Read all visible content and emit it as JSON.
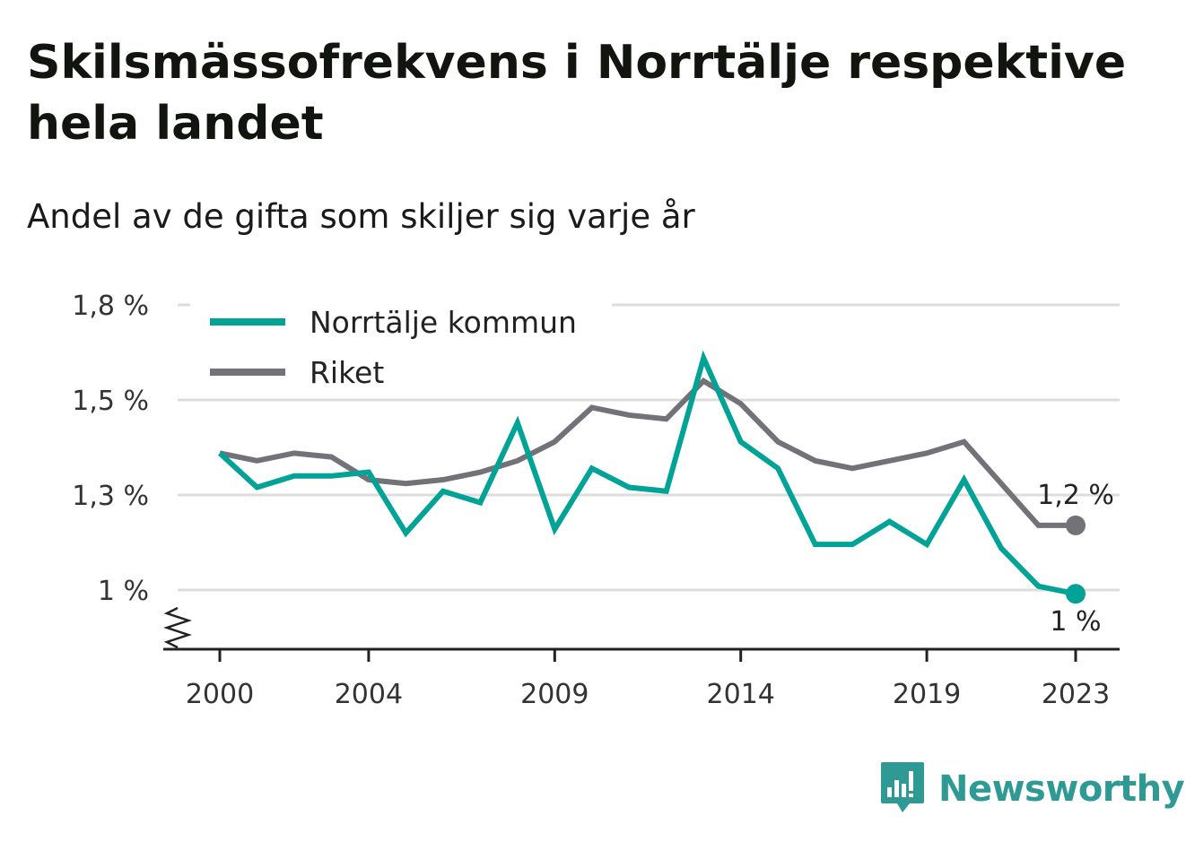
{
  "title": "Skilsmässofrekvens i Norrtälje respektive hela landet",
  "subtitle": "Andel av de gifta som skiljer sig varje år",
  "brand": "Newsworthy",
  "colors": {
    "norrtalje": "#00a396",
    "riket": "#737278",
    "grid": "#dddddd",
    "axis": "#222222"
  },
  "chart_data": {
    "type": "line",
    "x": [
      2000,
      2001,
      2002,
      2003,
      2004,
      2005,
      2006,
      2007,
      2008,
      2009,
      2010,
      2011,
      2012,
      2013,
      2014,
      2015,
      2016,
      2017,
      2018,
      2019,
      2020,
      2021,
      2022,
      2023
    ],
    "x_ticks": [
      2000,
      2004,
      2009,
      2014,
      2019,
      2023
    ],
    "x_tick_labels": [
      "2000",
      "2004",
      "2009",
      "2014",
      "2019",
      "2023"
    ],
    "y_ticks": [
      1.0,
      1.25,
      1.5,
      1.75
    ],
    "y_tick_labels": [
      "1 %",
      "1,3 %",
      "1,5 %",
      "1,8 %"
    ],
    "ylim": [
      0.85,
      1.75
    ],
    "y_axis_break": true,
    "grid": true,
    "legend_position": "top-left",
    "series": [
      {
        "name": "Norrtälje kommun",
        "color": "#00a396",
        "values": [
          1.36,
          1.27,
          1.3,
          1.3,
          1.31,
          1.15,
          1.26,
          1.23,
          1.44,
          1.16,
          1.32,
          1.27,
          1.26,
          1.61,
          1.39,
          1.32,
          1.12,
          1.12,
          1.18,
          1.12,
          1.29,
          1.11,
          1.01,
          0.99
        ],
        "end_label": "1 %"
      },
      {
        "name": "Riket",
        "color": "#737278",
        "values": [
          1.36,
          1.34,
          1.36,
          1.35,
          1.29,
          1.28,
          1.29,
          1.31,
          1.34,
          1.39,
          1.48,
          1.46,
          1.45,
          1.55,
          1.49,
          1.39,
          1.34,
          1.32,
          1.34,
          1.36,
          1.39,
          1.28,
          1.17,
          1.17
        ],
        "end_label": "1,2 %"
      }
    ]
  }
}
